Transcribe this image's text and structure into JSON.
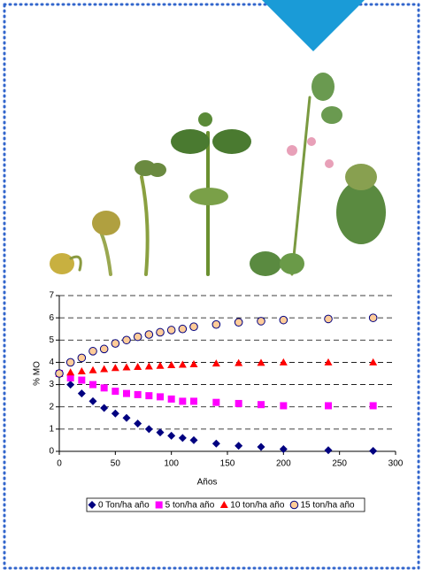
{
  "chart_data": {
    "type": "scatter",
    "x": [
      0,
      10,
      20,
      30,
      40,
      50,
      60,
      70,
      80,
      90,
      100,
      110,
      120,
      140,
      160,
      180,
      200,
      240,
      280
    ],
    "series": [
      {
        "name": "0 Ton/ha año",
        "color": "#000080",
        "marker": "diamond",
        "values": [
          3.5,
          3.0,
          2.6,
          2.25,
          1.95,
          1.7,
          1.5,
          1.25,
          1.0,
          0.85,
          0.7,
          0.6,
          0.5,
          0.35,
          0.25,
          0.2,
          0.1,
          0.05,
          0.02
        ]
      },
      {
        "name": "5 ton/ha año",
        "color": "#ff00ff",
        "marker": "square",
        "values": [
          3.5,
          3.3,
          3.2,
          3.0,
          2.85,
          2.7,
          2.6,
          2.55,
          2.5,
          2.45,
          2.35,
          2.25,
          2.25,
          2.2,
          2.15,
          2.1,
          2.05,
          2.05,
          2.05
        ]
      },
      {
        "name": "10 ton/ha año",
        "color": "#ff0000",
        "marker": "triangle",
        "values": [
          3.5,
          3.55,
          3.6,
          3.65,
          3.7,
          3.75,
          3.78,
          3.8,
          3.82,
          3.85,
          3.88,
          3.9,
          3.92,
          3.95,
          3.97,
          3.98,
          4.0,
          4.0,
          4.0
        ]
      },
      {
        "name": "15 ton/ha año",
        "color": "#ffcc99",
        "marker": "circle",
        "values": [
          3.5,
          4.0,
          4.2,
          4.5,
          4.6,
          4.85,
          5.0,
          5.15,
          5.25,
          5.35,
          5.45,
          5.5,
          5.6,
          5.7,
          5.8,
          5.85,
          5.9,
          5.95,
          6.0
        ]
      }
    ],
    "xlabel": "Años",
    "ylabel": "% MO",
    "xlim": [
      0,
      300
    ],
    "xticks": [
      0,
      50,
      100,
      150,
      200,
      250,
      300
    ],
    "ylim": [
      0,
      7
    ],
    "yticks": [
      0,
      1,
      2,
      3,
      4,
      5,
      6,
      7
    ],
    "grid": true,
    "legend": "bottom"
  }
}
